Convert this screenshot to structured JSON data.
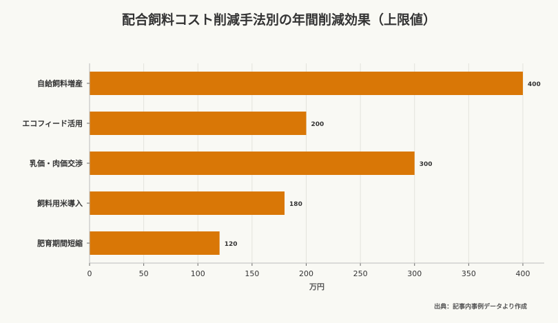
{
  "chart_data": {
    "type": "bar",
    "orientation": "horizontal",
    "title": "配合飼料コスト削減手法別の年間削減効果（上限値）",
    "categories": [
      "自給飼料増産",
      "エコフィード活用",
      "乳価・肉価交渉",
      "飼料用米導入",
      "肥育期間短縮"
    ],
    "values": [
      400,
      200,
      300,
      180,
      120
    ],
    "value_labels": [
      "400",
      "200",
      "300",
      "180",
      "120"
    ],
    "xlabel": "万円",
    "ylabel": "",
    "xlim": [
      0,
      420
    ],
    "xticks": [
      0,
      50,
      100,
      150,
      200,
      250,
      300,
      350,
      400
    ],
    "xtick_labels": [
      "0",
      "50",
      "100",
      "150",
      "200",
      "250",
      "300",
      "350",
      "400"
    ],
    "grid": true,
    "bar_color": "#d97706",
    "source": "出典：記事内事例データより作成"
  }
}
